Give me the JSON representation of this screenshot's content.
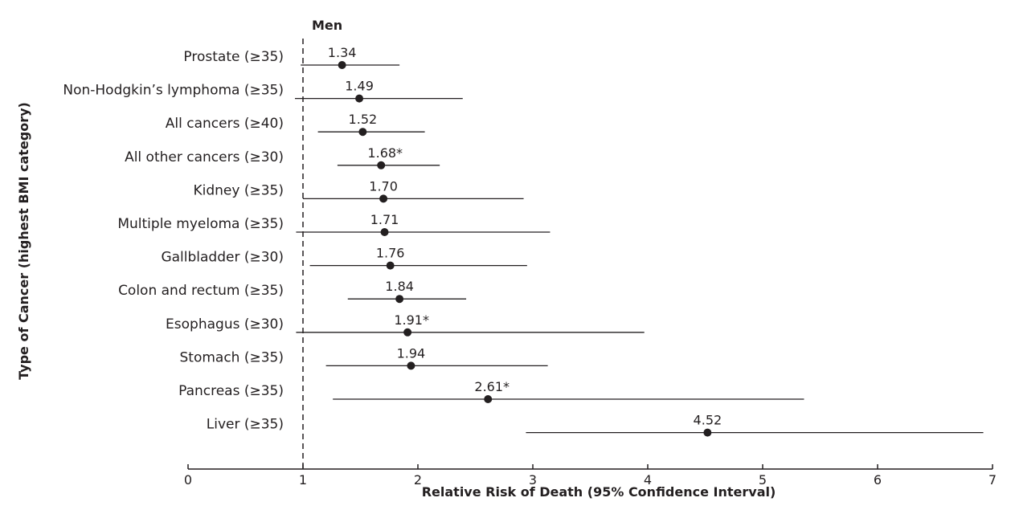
{
  "chart_data": {
    "type": "forest",
    "title": "Men",
    "xlabel": "Relative Risk of Death (95% Confidence Interval)",
    "ylabel": "Type of Cancer (highest BMI category)",
    "xlim": [
      0,
      7
    ],
    "xticks": [
      "0",
      "1",
      "2",
      "3",
      "4",
      "5",
      "6",
      "7"
    ],
    "reference_line": 1,
    "categories": [
      "Prostate (≥35)",
      "Non-Hodgkin’s lymphoma (≥35)",
      "All cancers (≥40)",
      "All other cancers (≥30)",
      "Kidney (≥35)",
      "Multiple myeloma (≥35)",
      "Gallbladder (≥30)",
      "Colon and rectum (≥35)",
      "Esophagus (≥30)",
      "Stomach (≥35)",
      "Pancreas (≥35)",
      "Liver (≥35)"
    ],
    "values": [
      1.34,
      1.49,
      1.52,
      1.68,
      1.7,
      1.71,
      1.76,
      1.84,
      1.91,
      1.94,
      2.61,
      4.52
    ],
    "value_labels": [
      "1.34",
      "1.49",
      "1.52",
      "1.68*",
      "1.70",
      "1.71",
      "1.76",
      "1.84",
      "1.91*",
      "1.94",
      "2.61*",
      "4.52"
    ],
    "ci_low": [
      0.98,
      0.93,
      1.13,
      1.3,
      1.0,
      0.94,
      1.06,
      1.39,
      0.94,
      1.2,
      1.26,
      2.94
    ],
    "ci_high": [
      1.84,
      2.39,
      2.06,
      2.19,
      2.92,
      3.15,
      2.95,
      2.42,
      3.97,
      3.13,
      5.36,
      6.92
    ],
    "grid": false
  }
}
